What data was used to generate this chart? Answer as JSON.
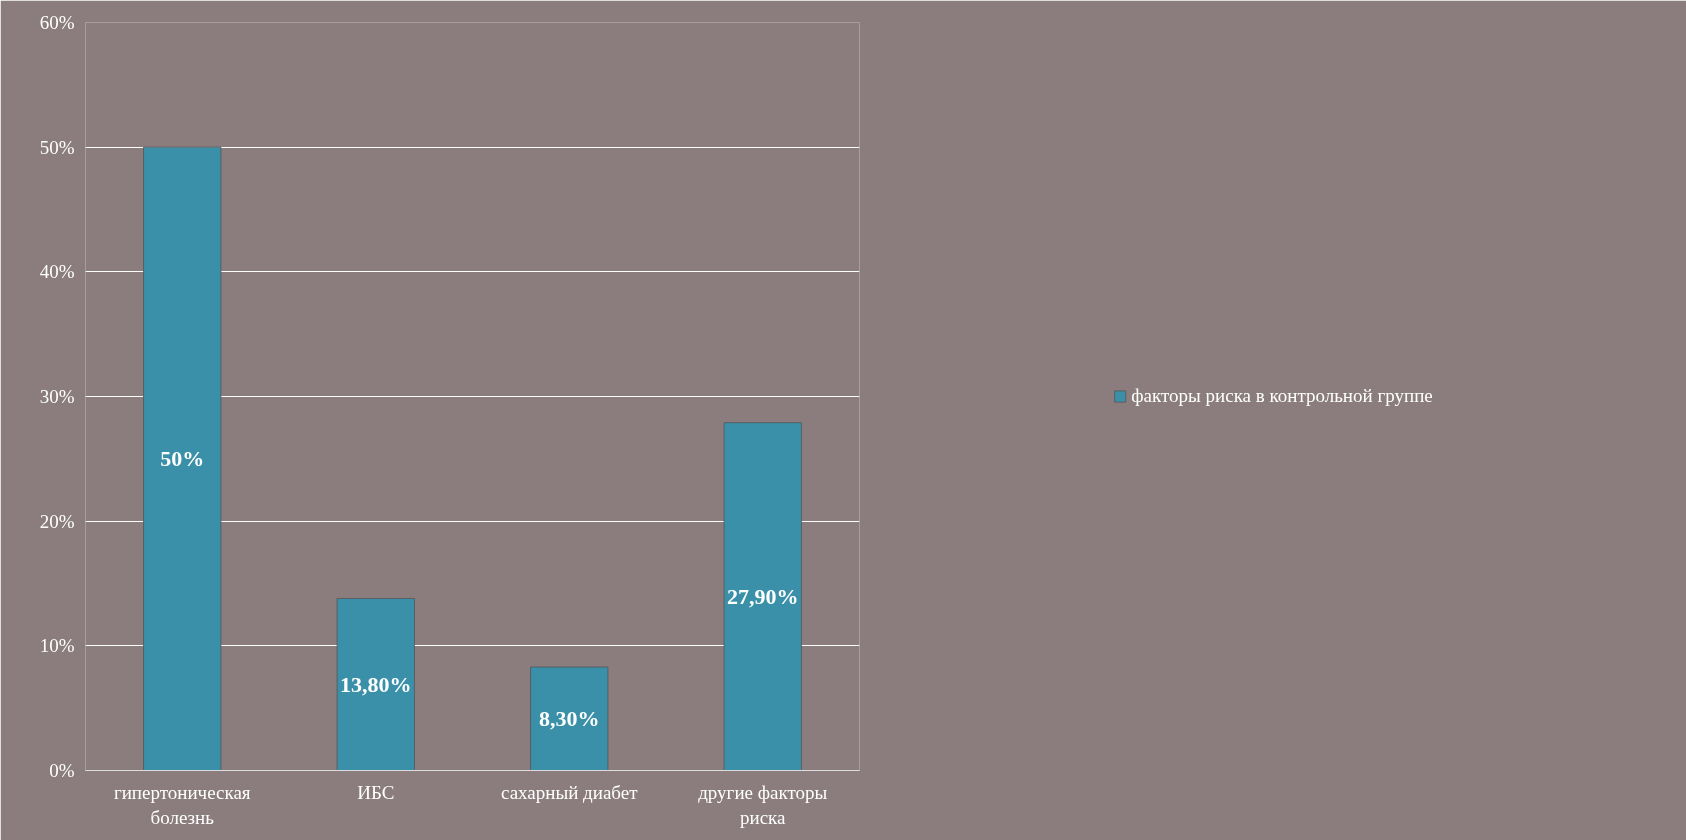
{
  "chart_data": {
    "type": "bar",
    "categories": [
      "гипертоническая болезнь",
      "ИБС",
      "сахарный диабет",
      "другие факторы риска"
    ],
    "series": [
      {
        "name": "факторы риска в контрольной группе",
        "color": "#3a90a8",
        "values": [
          50,
          13.8,
          8.3,
          27.9
        ],
        "value_labels": [
          "50%",
          "13,80%",
          "8,30%",
          "27,90%"
        ]
      }
    ],
    "ylim": [
      0,
      60
    ],
    "yticks": [
      {
        "value": 0,
        "label": "0%"
      },
      {
        "value": 10,
        "label": "10%"
      },
      {
        "value": 20,
        "label": "20%"
      },
      {
        "value": 30,
        "label": "30%"
      },
      {
        "value": 40,
        "label": "40%"
      },
      {
        "value": 50,
        "label": "50%"
      },
      {
        "value": 60,
        "label": "60%"
      }
    ],
    "grid": "y",
    "legend": "right"
  }
}
